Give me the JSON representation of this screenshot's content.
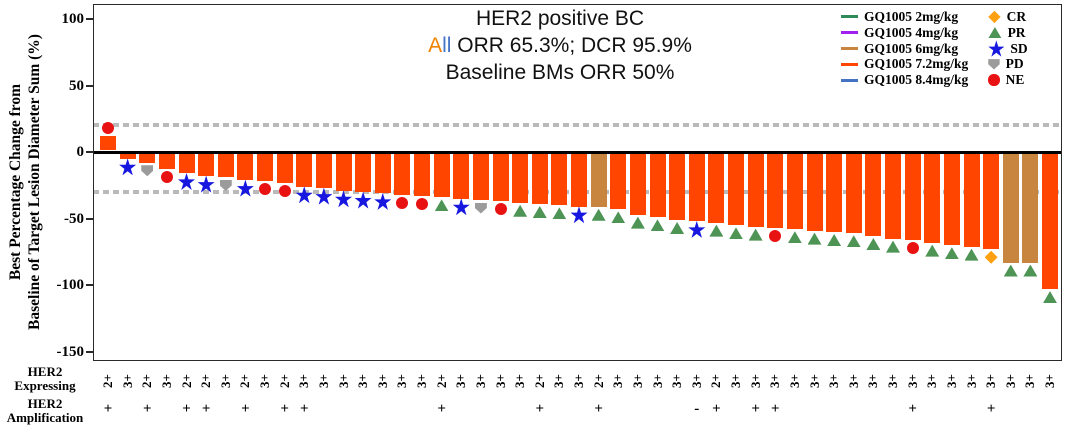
{
  "title": {
    "line1": "HER2 positive BC",
    "line2_prefix_a": "A",
    "line2_prefix_ll": "ll",
    "line2_rest": " ORR 65.3%; DCR 95.9%",
    "line3": "Baseline BMs ORR 50%",
    "accent_orange": "#F08300",
    "accent_blue": "#4472C4"
  },
  "y_axis": {
    "title_line1": "Best Percentage Change from",
    "title_line2": "Baseline of Target Lesion Diameter Sum (%)",
    "ticks": [
      100,
      50,
      0,
      -50,
      -100,
      -150
    ]
  },
  "x_rows": {
    "expressing_title": [
      "HER2",
      "Expressing"
    ],
    "amplification_title": [
      "HER2",
      "Amplification"
    ]
  },
  "legend": {
    "doses": [
      {
        "label": "GQ1005 2mg/kg",
        "dose": "2",
        "color": "#2E8B57"
      },
      {
        "label": "GQ1005 4mg/kg",
        "dose": "4",
        "color": "#A020F0"
      },
      {
        "label": "GQ1005 6mg/kg",
        "dose": "6",
        "color": "#C8853F"
      },
      {
        "label": "GQ1005 7.2mg/kg",
        "dose": "7.2",
        "color": "#FF4500"
      },
      {
        "label": "GQ1005 8.4mg/kg",
        "dose": "8.4",
        "color": "#4472C4"
      }
    ],
    "responses": [
      {
        "label": "CR",
        "shape": "diamond",
        "color": "#FFA010"
      },
      {
        "label": "PR",
        "shape": "triangle",
        "color": "#4E9455"
      },
      {
        "label": "SD",
        "shape": "star",
        "color": "#1717E0"
      },
      {
        "label": "PD",
        "shape": "pd",
        "color": "#9B9B9B"
      },
      {
        "label": "NE",
        "shape": "circle",
        "color": "#E91212"
      }
    ]
  },
  "chart_data": {
    "type": "bar",
    "title": "HER2 positive BC",
    "ylabel": "Best Percentage Change from Baseline of Target Lesion Diameter Sum (%)",
    "ylim": [
      -150,
      100
    ],
    "reference_lines": [
      20,
      -30
    ],
    "threshold_color": "#B9B9B9",
    "bars": [
      {
        "value": 11,
        "dose": "7.2",
        "response": "NE",
        "her2_expressing": "2+",
        "her2_amplification": "+"
      },
      {
        "value": -4,
        "dose": "7.2",
        "response": "SD",
        "her2_expressing": "3+",
        "her2_amplification": ""
      },
      {
        "value": -7,
        "dose": "7.2",
        "response": "PD",
        "her2_expressing": "2+",
        "her2_amplification": "+"
      },
      {
        "value": -12,
        "dose": "7.2",
        "response": "NE",
        "her2_expressing": "3+",
        "her2_amplification": ""
      },
      {
        "value": -15,
        "dose": "7.2",
        "response": "SD",
        "her2_expressing": "2+",
        "her2_amplification": "+"
      },
      {
        "value": -17,
        "dose": "7.2",
        "response": "SD",
        "her2_expressing": "2+",
        "her2_amplification": "+"
      },
      {
        "value": -18,
        "dose": "7.2",
        "response": "PD",
        "her2_expressing": "3+",
        "her2_amplification": ""
      },
      {
        "value": -20,
        "dose": "7.2",
        "response": "SD",
        "her2_expressing": "2+",
        "her2_amplification": "+"
      },
      {
        "value": -21,
        "dose": "7.2",
        "response": "NE",
        "her2_expressing": "3+",
        "her2_amplification": ""
      },
      {
        "value": -22,
        "dose": "7.2",
        "response": "NE",
        "her2_expressing": "2+",
        "her2_amplification": "+"
      },
      {
        "value": -25,
        "dose": "7.2",
        "response": "SD",
        "her2_expressing": "3+",
        "her2_amplification": "+"
      },
      {
        "value": -26,
        "dose": "7.2",
        "response": "SD",
        "her2_expressing": "3+",
        "her2_amplification": ""
      },
      {
        "value": -28,
        "dose": "7.2",
        "response": "SD",
        "her2_expressing": "3+",
        "her2_amplification": ""
      },
      {
        "value": -29,
        "dose": "7.2",
        "response": "SD",
        "her2_expressing": "3+",
        "her2_amplification": ""
      },
      {
        "value": -30,
        "dose": "7.2",
        "response": "SD",
        "her2_expressing": "3+",
        "her2_amplification": ""
      },
      {
        "value": -31,
        "dose": "7.2",
        "response": "NE",
        "her2_expressing": "3+",
        "her2_amplification": ""
      },
      {
        "value": -32,
        "dose": "7.2",
        "response": "NE",
        "her2_expressing": "3+",
        "her2_amplification": ""
      },
      {
        "value": -33,
        "dose": "7.2",
        "response": "PR",
        "her2_expressing": "2+",
        "her2_amplification": "+"
      },
      {
        "value": -34,
        "dose": "7.2",
        "response": "SD",
        "her2_expressing": "3+",
        "her2_amplification": ""
      },
      {
        "value": -35,
        "dose": "7.2",
        "response": "PD",
        "her2_expressing": "3+",
        "her2_amplification": ""
      },
      {
        "value": -36,
        "dose": "7.2",
        "response": "NE",
        "her2_expressing": "3+",
        "her2_amplification": ""
      },
      {
        "value": -37,
        "dose": "7.2",
        "response": "PR",
        "her2_expressing": "3+",
        "her2_amplification": ""
      },
      {
        "value": -38,
        "dose": "7.2",
        "response": "PR",
        "her2_expressing": "2+",
        "her2_amplification": "+"
      },
      {
        "value": -39,
        "dose": "7.2",
        "response": "PR",
        "her2_expressing": "3+",
        "her2_amplification": ""
      },
      {
        "value": -40,
        "dose": "7.2",
        "response": "SD",
        "her2_expressing": "3+",
        "her2_amplification": ""
      },
      {
        "value": -40,
        "dose": "6",
        "response": "PR",
        "her2_expressing": "2+",
        "her2_amplification": "+"
      },
      {
        "value": -42,
        "dose": "7.2",
        "response": "PR",
        "her2_expressing": "3+",
        "her2_amplification": ""
      },
      {
        "value": -46,
        "dose": "7.2",
        "response": "PR",
        "her2_expressing": "3+",
        "her2_amplification": ""
      },
      {
        "value": -48,
        "dose": "7.2",
        "response": "PR",
        "her2_expressing": "3+",
        "her2_amplification": ""
      },
      {
        "value": -50,
        "dose": "7.2",
        "response": "PR",
        "her2_expressing": "3+",
        "her2_amplification": ""
      },
      {
        "value": -51,
        "dose": "7.2",
        "response": "SD",
        "her2_expressing": "3+",
        "her2_amplification": "-"
      },
      {
        "value": -52,
        "dose": "7.2",
        "response": "PR",
        "her2_expressing": "2+",
        "her2_amplification": "+"
      },
      {
        "value": -54,
        "dose": "7.2",
        "response": "PR",
        "her2_expressing": "3+",
        "her2_amplification": ""
      },
      {
        "value": -55,
        "dose": "7.2",
        "response": "PR",
        "her2_expressing": "3+",
        "her2_amplification": "+"
      },
      {
        "value": -56,
        "dose": "7.2",
        "response": "NE",
        "her2_expressing": "3+",
        "her2_amplification": "+"
      },
      {
        "value": -57,
        "dose": "7.2",
        "response": "PR",
        "her2_expressing": "3+",
        "her2_amplification": ""
      },
      {
        "value": -58,
        "dose": "7.2",
        "response": "PR",
        "her2_expressing": "3+",
        "her2_amplification": ""
      },
      {
        "value": -59,
        "dose": "7.2",
        "response": "PR",
        "her2_expressing": "3+",
        "her2_amplification": ""
      },
      {
        "value": -60,
        "dose": "7.2",
        "response": "PR",
        "her2_expressing": "3+",
        "her2_amplification": ""
      },
      {
        "value": -62,
        "dose": "7.2",
        "response": "PR",
        "her2_expressing": "3+",
        "her2_amplification": ""
      },
      {
        "value": -64,
        "dose": "7.2",
        "response": "PR",
        "her2_expressing": "3+",
        "her2_amplification": ""
      },
      {
        "value": -65,
        "dose": "7.2",
        "response": "NE",
        "her2_expressing": "3+",
        "her2_amplification": "+"
      },
      {
        "value": -67,
        "dose": "7.2",
        "response": "PR",
        "her2_expressing": "3+",
        "her2_amplification": ""
      },
      {
        "value": -69,
        "dose": "7.2",
        "response": "PR",
        "her2_expressing": "3+",
        "her2_amplification": ""
      },
      {
        "value": -70,
        "dose": "7.2",
        "response": "PR",
        "her2_expressing": "3+",
        "her2_amplification": ""
      },
      {
        "value": -72,
        "dose": "7.2",
        "response": "CR",
        "her2_expressing": "3+",
        "her2_amplification": "+"
      },
      {
        "value": -82,
        "dose": "6",
        "response": "PR",
        "her2_expressing": "3+",
        "her2_amplification": ""
      },
      {
        "value": -82,
        "dose": "6",
        "response": "PR",
        "her2_expressing": "3+",
        "her2_amplification": ""
      },
      {
        "value": -102,
        "dose": "7.2",
        "response": "PR",
        "her2_expressing": "3+",
        "her2_amplification": ""
      }
    ]
  }
}
